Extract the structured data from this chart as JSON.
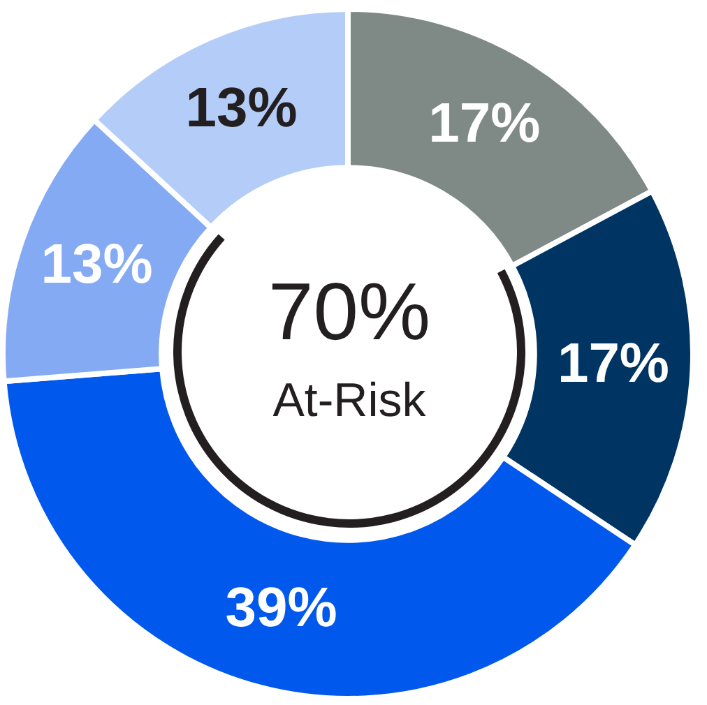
{
  "chart_data": {
    "type": "donut",
    "categories": [
      null,
      null,
      null,
      null,
      null
    ],
    "values": [
      17,
      17,
      39,
      13,
      13
    ],
    "colors": [
      "#7f8985",
      "#003462",
      "#0059ec",
      "#84aaf4",
      "#b3cdf8"
    ],
    "value_labels": [
      "17%",
      "17%",
      "39%",
      "13%",
      "13%"
    ],
    "legend": false,
    "annotations": [
      "70%",
      "At-Risk"
    ]
  }
}
